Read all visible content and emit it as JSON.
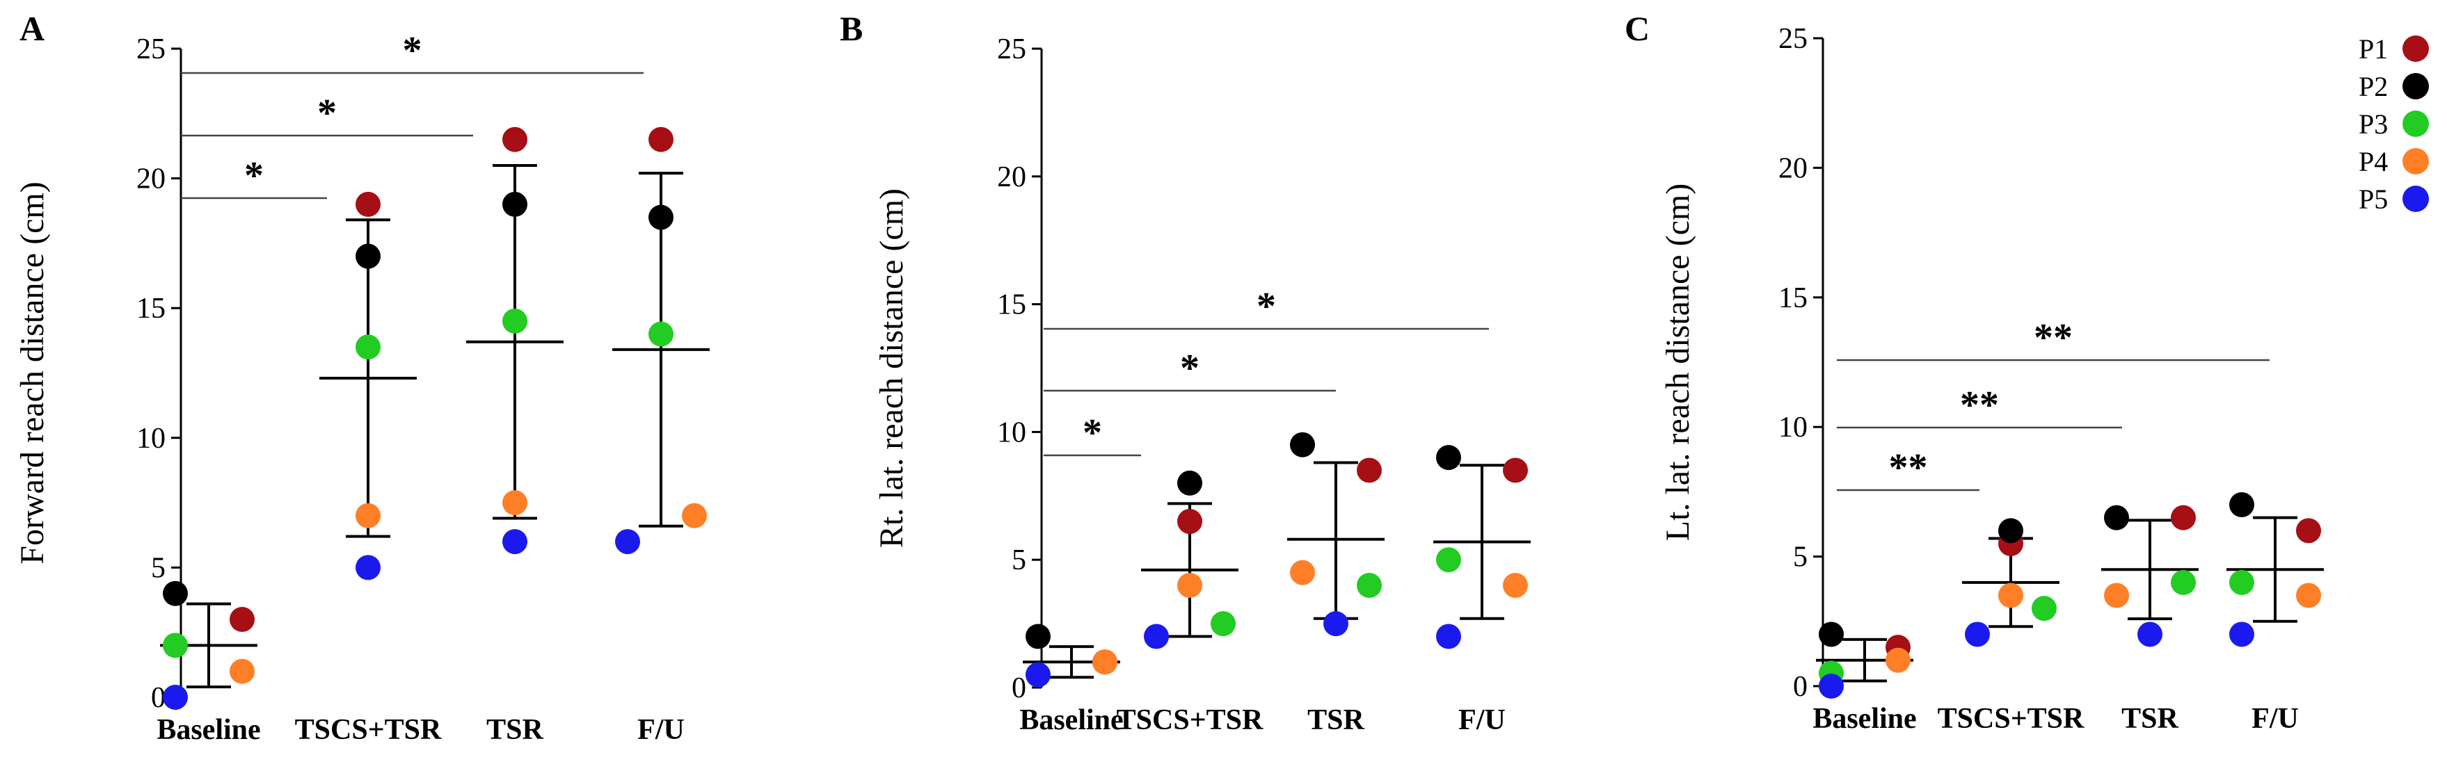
{
  "legend": [
    {
      "label": "P1",
      "color": "#a50f15"
    },
    {
      "label": "P2",
      "color": "#000000"
    },
    {
      "label": "P3",
      "color": "#22cc22"
    },
    {
      "label": "P4",
      "color": "#ff7f27"
    },
    {
      "label": "P5",
      "color": "#1a1aee"
    }
  ],
  "chart_data": [
    {
      "type": "scatter",
      "panel": "A",
      "ylabel": "Forward reach distance (cm)",
      "ylim": [
        0,
        25
      ],
      "yticks": [
        0,
        5,
        10,
        15,
        20,
        25
      ],
      "categories": [
        "Baseline",
        "TSCS+TSR",
        "TSR",
        "F/U"
      ],
      "series": [
        {
          "name": "P1",
          "values": [
            3,
            19,
            21.5,
            21.5
          ]
        },
        {
          "name": "P2",
          "values": [
            4,
            17,
            19,
            18.5
          ]
        },
        {
          "name": "P3",
          "values": [
            2,
            13.5,
            14.5,
            14
          ]
        },
        {
          "name": "P4",
          "values": [
            1,
            7,
            7.5,
            7
          ]
        },
        {
          "name": "P5",
          "values": [
            0,
            5,
            6,
            6
          ]
        }
      ],
      "summary": [
        {
          "mean": 2,
          "upper": 3.6,
          "lower": 0.4
        },
        {
          "mean": 12.3,
          "upper": 18.4,
          "lower": 6.2
        },
        {
          "mean": 13.7,
          "upper": 20.5,
          "lower": 6.9
        },
        {
          "mean": 13.4,
          "upper": 20.2,
          "lower": 6.6
        }
      ],
      "significance": [
        {
          "from": "Baseline",
          "to": "TSCS+TSR",
          "label": "*"
        },
        {
          "from": "Baseline",
          "to": "TSR",
          "label": "*"
        },
        {
          "from": "Baseline",
          "to": "F/U",
          "label": "*"
        }
      ]
    },
    {
      "type": "scatter",
      "panel": "B",
      "ylabel": "Rt. lat. reach distance (cm)",
      "ylim": [
        0,
        25
      ],
      "yticks": [
        0,
        5,
        10,
        15,
        20,
        25
      ],
      "categories": [
        "Baseline",
        "TSCS+TSR",
        "TSR",
        "F/U"
      ],
      "series": [
        {
          "name": "P1",
          "values": [
            1,
            6.5,
            8.5,
            8.5
          ]
        },
        {
          "name": "P2",
          "values": [
            2,
            8,
            9.5,
            9
          ]
        },
        {
          "name": "P3",
          "values": [
            0.5,
            2.5,
            4,
            5
          ]
        },
        {
          "name": "P4",
          "values": [
            1,
            4,
            4.5,
            4
          ]
        },
        {
          "name": "P5",
          "values": [
            0.5,
            2,
            2.5,
            2
          ]
        }
      ],
      "summary": [
        {
          "mean": 1,
          "upper": 1.6,
          "lower": 0.4
        },
        {
          "mean": 4.6,
          "upper": 7.2,
          "lower": 2
        },
        {
          "mean": 5.8,
          "upper": 8.8,
          "lower": 2.7
        },
        {
          "mean": 5.7,
          "upper": 8.7,
          "lower": 2.7
        }
      ],
      "significance": [
        {
          "from": "Baseline",
          "to": "TSCS+TSR",
          "label": "*"
        },
        {
          "from": "Baseline",
          "to": "TSR",
          "label": "*"
        },
        {
          "from": "Baseline",
          "to": "F/U",
          "label": "*"
        }
      ]
    },
    {
      "type": "scatter",
      "panel": "C",
      "ylabel": "Lt. lat. reach distance (cm)",
      "ylim": [
        0,
        25
      ],
      "yticks": [
        0,
        5,
        10,
        15,
        20,
        25
      ],
      "categories": [
        "Baseline",
        "TSCS+TSR",
        "TSR",
        "F/U"
      ],
      "series": [
        {
          "name": "P1",
          "values": [
            1.5,
            5.5,
            6.5,
            6
          ]
        },
        {
          "name": "P2",
          "values": [
            2,
            6,
            6.5,
            7
          ]
        },
        {
          "name": "P3",
          "values": [
            0.5,
            3,
            4,
            4
          ]
        },
        {
          "name": "P4",
          "values": [
            1,
            3.5,
            3.5,
            3.5
          ]
        },
        {
          "name": "P5",
          "values": [
            0,
            2,
            2,
            2
          ]
        }
      ],
      "summary": [
        {
          "mean": 1,
          "upper": 1.8,
          "lower": 0.2
        },
        {
          "mean": 4,
          "upper": 5.7,
          "lower": 2.3
        },
        {
          "mean": 4.5,
          "upper": 6.4,
          "lower": 2.6
        },
        {
          "mean": 4.5,
          "upper": 6.5,
          "lower": 2.5
        }
      ],
      "significance": [
        {
          "from": "Baseline",
          "to": "TSCS+TSR",
          "label": "**"
        },
        {
          "from": "Baseline",
          "to": "TSR",
          "label": "**"
        },
        {
          "from": "Baseline",
          "to": "F/U",
          "label": "**"
        }
      ]
    }
  ]
}
